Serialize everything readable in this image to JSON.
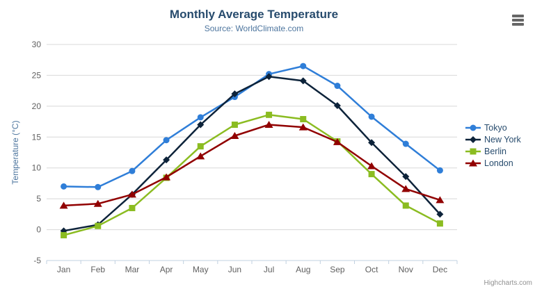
{
  "chart_data": {
    "type": "line",
    "title": "Monthly Average Temperature",
    "subtitle": "Source: WorldClimate.com",
    "xlabel": "",
    "ylabel": "Temperature (°C)",
    "categories": [
      "Jan",
      "Feb",
      "Mar",
      "Apr",
      "May",
      "Jun",
      "Jul",
      "Aug",
      "Sep",
      "Oct",
      "Nov",
      "Dec"
    ],
    "ylim": [
      -5,
      30
    ],
    "yticks": [
      -5,
      0,
      5,
      10,
      15,
      20,
      25,
      30
    ],
    "grid": true,
    "legend_position": "right",
    "series": [
      {
        "name": "Tokyo",
        "marker": "circle",
        "color": "#2f7ed8",
        "values": [
          7.0,
          6.9,
          9.5,
          14.5,
          18.2,
          21.5,
          25.2,
          26.5,
          23.3,
          18.3,
          13.9,
          9.6
        ]
      },
      {
        "name": "New York",
        "marker": "diamond",
        "color": "#0d233a",
        "values": [
          -0.2,
          0.8,
          5.7,
          11.3,
          17.0,
          22.0,
          24.8,
          24.1,
          20.1,
          14.1,
          8.6,
          2.5
        ]
      },
      {
        "name": "Berlin",
        "marker": "square",
        "color": "#8bbc21",
        "values": [
          -0.9,
          0.6,
          3.5,
          8.4,
          13.5,
          17.0,
          18.6,
          17.9,
          14.3,
          9.0,
          3.9,
          1.0
        ]
      },
      {
        "name": "London",
        "marker": "triangle",
        "color": "#910000",
        "values": [
          3.9,
          4.2,
          5.7,
          8.5,
          11.9,
          15.2,
          17.0,
          16.6,
          14.2,
          10.3,
          6.6,
          4.8
        ]
      }
    ]
  },
  "credits": "Highcharts.com",
  "theme": {
    "titleColor": "#274b6d",
    "subtitleColor": "#4d759e",
    "axisLabelColor": "#606060",
    "axisTitleColor": "#4d759e",
    "gridColor": "#d8d8d8",
    "axisLineColor": "#c0d0e0",
    "legendColor": "#274b6d",
    "creditsColor": "#909090",
    "menuColor": "#666666",
    "background": "#ffffff"
  }
}
